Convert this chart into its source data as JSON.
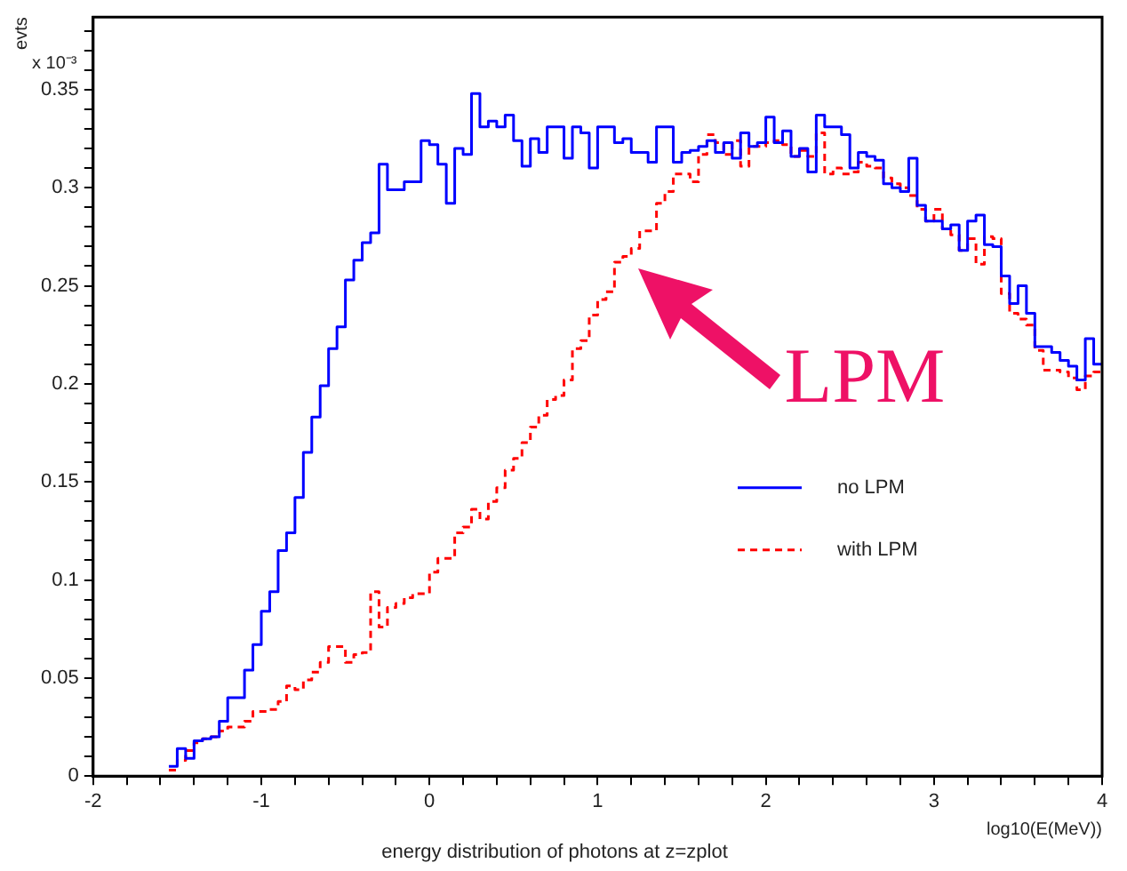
{
  "chart_data": {
    "type": "histogram",
    "title": "energy distribution of photons at z=zplot",
    "xlabel": "log10(E(MeV))",
    "ylabel": "evts",
    "annotations": [
      "x 10⁻³",
      "LPM"
    ],
    "bins": [
      -1.55,
      -1.5,
      -1.45,
      -1.4,
      -1.35,
      -1.3,
      -1.25,
      -1.2,
      -1.15,
      -1.1,
      -1.05,
      -1,
      -0.95,
      -0.9,
      -0.85,
      -0.8,
      -0.75,
      -0.7,
      -0.65,
      -0.6,
      -0.55,
      -0.5,
      -0.45,
      -0.4,
      -0.35,
      -0.3,
      -0.25,
      -0.2,
      -0.15,
      -0.1,
      -0.05,
      0,
      0.05,
      0.1,
      0.15,
      0.2,
      0.25,
      0.3,
      0.35,
      0.4,
      0.45,
      0.5,
      0.55,
      0.6,
      0.65,
      0.7,
      0.75,
      0.8,
      0.85,
      0.9,
      0.95,
      1,
      1.05,
      1.1,
      1.15,
      1.2,
      1.25,
      1.3,
      1.35,
      1.4,
      1.45,
      1.5,
      1.55,
      1.6,
      1.65,
      1.7,
      1.75,
      1.8,
      1.85,
      1.9,
      1.95,
      2,
      2.05,
      2.1,
      2.15,
      2.2,
      2.25,
      2.3,
      2.35,
      2.4,
      2.45,
      2.5,
      2.55,
      2.6,
      2.65,
      2.7,
      2.75,
      2.8,
      2.85,
      2.9,
      2.95,
      3,
      3.05,
      3.1,
      3.15,
      3.2,
      3.25,
      3.3,
      3.35,
      3.4,
      3.45,
      3.5,
      3.55,
      3.6,
      3.65,
      3.7,
      3.75,
      3.8,
      3.85,
      3.9,
      3.95,
      4
    ],
    "series": [
      {
        "name": "no LPM",
        "color": "#0000ff",
        "line_style": "solid",
        "values": [
          0.005,
          0.014,
          0.009,
          0.018,
          0.019,
          0.02,
          0.028,
          0.04,
          0.04,
          0.054,
          0.067,
          0.084,
          0.094,
          0.115,
          0.124,
          0.142,
          0.165,
          0.183,
          0.199,
          0.218,
          0.229,
          0.253,
          0.263,
          0.272,
          0.277,
          0.312,
          0.299,
          0.299,
          0.303,
          0.303,
          0.324,
          0.322,
          0.312,
          0.292,
          0.32,
          0.317,
          0.348,
          0.331,
          0.334,
          0.331,
          0.337,
          0.324,
          0.311,
          0.325,
          0.318,
          0.331,
          0.331,
          0.315,
          0.331,
          0.328,
          0.31,
          0.331,
          0.331,
          0.323,
          0.325,
          0.318,
          0.318,
          0.313,
          0.331,
          0.331,
          0.313,
          0.318,
          0.319,
          0.321,
          0.324,
          0.318,
          0.323,
          0.315,
          0.328,
          0.321,
          0.323,
          0.336,
          0.323,
          0.329,
          0.316,
          0.32,
          0.308,
          0.337,
          0.331,
          0.331,
          0.327,
          0.31,
          0.318,
          0.316,
          0.314,
          0.302,
          0.3,
          0.298,
          0.315,
          0.291,
          0.283,
          0.283,
          0.279,
          0.281,
          0.268,
          0.283,
          0.286,
          0.271,
          0.27,
          0.255,
          0.241,
          0.25,
          0.236,
          0.219,
          0.219,
          0.216,
          0.212,
          0.209,
          0.202,
          0.223,
          0.21
        ]
      },
      {
        "name": "with LPM",
        "color": "#ff0000",
        "line_style": "dashed",
        "values": [
          0.003,
          0.008,
          0.013,
          0.017,
          0.019,
          0.02,
          0.023,
          0.025,
          0.025,
          0.028,
          0.033,
          0.033,
          0.034,
          0.038,
          0.046,
          0.044,
          0.049,
          0.053,
          0.058,
          0.066,
          0.066,
          0.058,
          0.062,
          0.063,
          0.094,
          0.076,
          0.086,
          0.088,
          0.091,
          0.093,
          0.093,
          0.104,
          0.111,
          0.111,
          0.124,
          0.127,
          0.136,
          0.131,
          0.14,
          0.147,
          0.156,
          0.162,
          0.17,
          0.178,
          0.184,
          0.192,
          0.194,
          0.202,
          0.218,
          0.222,
          0.235,
          0.243,
          0.247,
          0.262,
          0.265,
          0.269,
          0.278,
          0.278,
          0.292,
          0.298,
          0.307,
          0.307,
          0.303,
          0.317,
          0.327,
          0.323,
          0.317,
          0.324,
          0.311,
          0.321,
          0.321,
          0.323,
          0.324,
          0.322,
          0.316,
          0.319,
          0.316,
          0.328,
          0.307,
          0.31,
          0.307,
          0.308,
          0.313,
          0.311,
          0.31,
          0.305,
          0.302,
          0.3,
          0.296,
          0.289,
          0.283,
          0.289,
          0.279,
          0.276,
          0.268,
          0.274,
          0.261,
          0.275,
          0.274,
          0.246,
          0.236,
          0.233,
          0.23,
          0.217,
          0.207,
          0.207,
          0.206,
          0.203,
          0.197,
          0.204,
          0.206
        ]
      }
    ],
    "xlim": [
      -2,
      4
    ],
    "xticks": [
      -2,
      {
        "value": -1.8,
        "label": null
      },
      {
        "value": -1.6,
        "label": null
      },
      {
        "value": -1.4,
        "label": null
      },
      {
        "value": -1.2,
        "label": null
      },
      -1,
      {
        "value": -0.8,
        "label": null
      },
      {
        "value": -0.6,
        "label": null
      },
      {
        "value": -0.4,
        "label": null
      },
      {
        "value": -0.2,
        "label": null
      },
      0,
      {
        "value": 0.2,
        "label": null
      },
      {
        "value": 0.4,
        "label": null
      },
      {
        "value": 0.6,
        "label": null
      },
      {
        "value": 0.8,
        "label": null
      },
      1,
      {
        "value": 1.2,
        "label": null
      },
      {
        "value": 1.4,
        "label": null
      },
      {
        "value": 1.6,
        "label": null
      },
      {
        "value": 1.8,
        "label": null
      },
      2,
      {
        "value": 2.2,
        "label": null
      },
      {
        "value": 2.4,
        "label": null
      },
      {
        "value": 2.6,
        "label": null
      },
      {
        "value": 2.8,
        "label": null
      },
      3,
      {
        "value": 3.2,
        "label": null
      },
      {
        "value": 3.4,
        "label": null
      },
      {
        "value": 3.6,
        "label": null
      },
      {
        "value": 3.8,
        "label": null
      },
      4
    ],
    "ylim": [
      0,
      0.387
    ],
    "yticks": [
      0,
      {
        "value": 0.01,
        "label": null
      },
      {
        "value": 0.02,
        "label": null
      },
      {
        "value": 0.03,
        "label": null
      },
      {
        "value": 0.04,
        "label": null
      },
      0.05,
      {
        "value": 0.06,
        "label": null
      },
      {
        "value": 0.07,
        "label": null
      },
      {
        "value": 0.08,
        "label": null
      },
      {
        "value": 0.09,
        "label": null
      },
      0.1,
      {
        "value": 0.11,
        "label": null
      },
      {
        "value": 0.12,
        "label": null
      },
      {
        "value": 0.13,
        "label": null
      },
      {
        "value": 0.14,
        "label": null
      },
      0.15,
      {
        "value": 0.16,
        "label": null
      },
      {
        "value": 0.17,
        "label": null
      },
      {
        "value": 0.18,
        "label": null
      },
      {
        "value": 0.19,
        "label": null
      },
      0.2,
      {
        "value": 0.21,
        "label": null
      },
      {
        "value": 0.22,
        "label": null
      },
      {
        "value": 0.23,
        "label": null
      },
      {
        "value": 0.24,
        "label": null
      },
      0.25,
      {
        "value": 0.26,
        "label": null
      },
      {
        "value": 0.27,
        "label": null
      },
      {
        "value": 0.28,
        "label": null
      },
      {
        "value": 0.29,
        "label": null
      },
      0.3,
      {
        "value": 0.31,
        "label": null
      },
      {
        "value": 0.32,
        "label": null
      },
      {
        "value": 0.33,
        "label": null
      },
      {
        "value": 0.34,
        "label": null
      },
      0.35,
      {
        "value": 0.36,
        "label": null
      },
      {
        "value": 0.37,
        "label": null
      },
      {
        "value": 0.38,
        "label": null
      }
    ],
    "grid": false,
    "legend": "right"
  }
}
